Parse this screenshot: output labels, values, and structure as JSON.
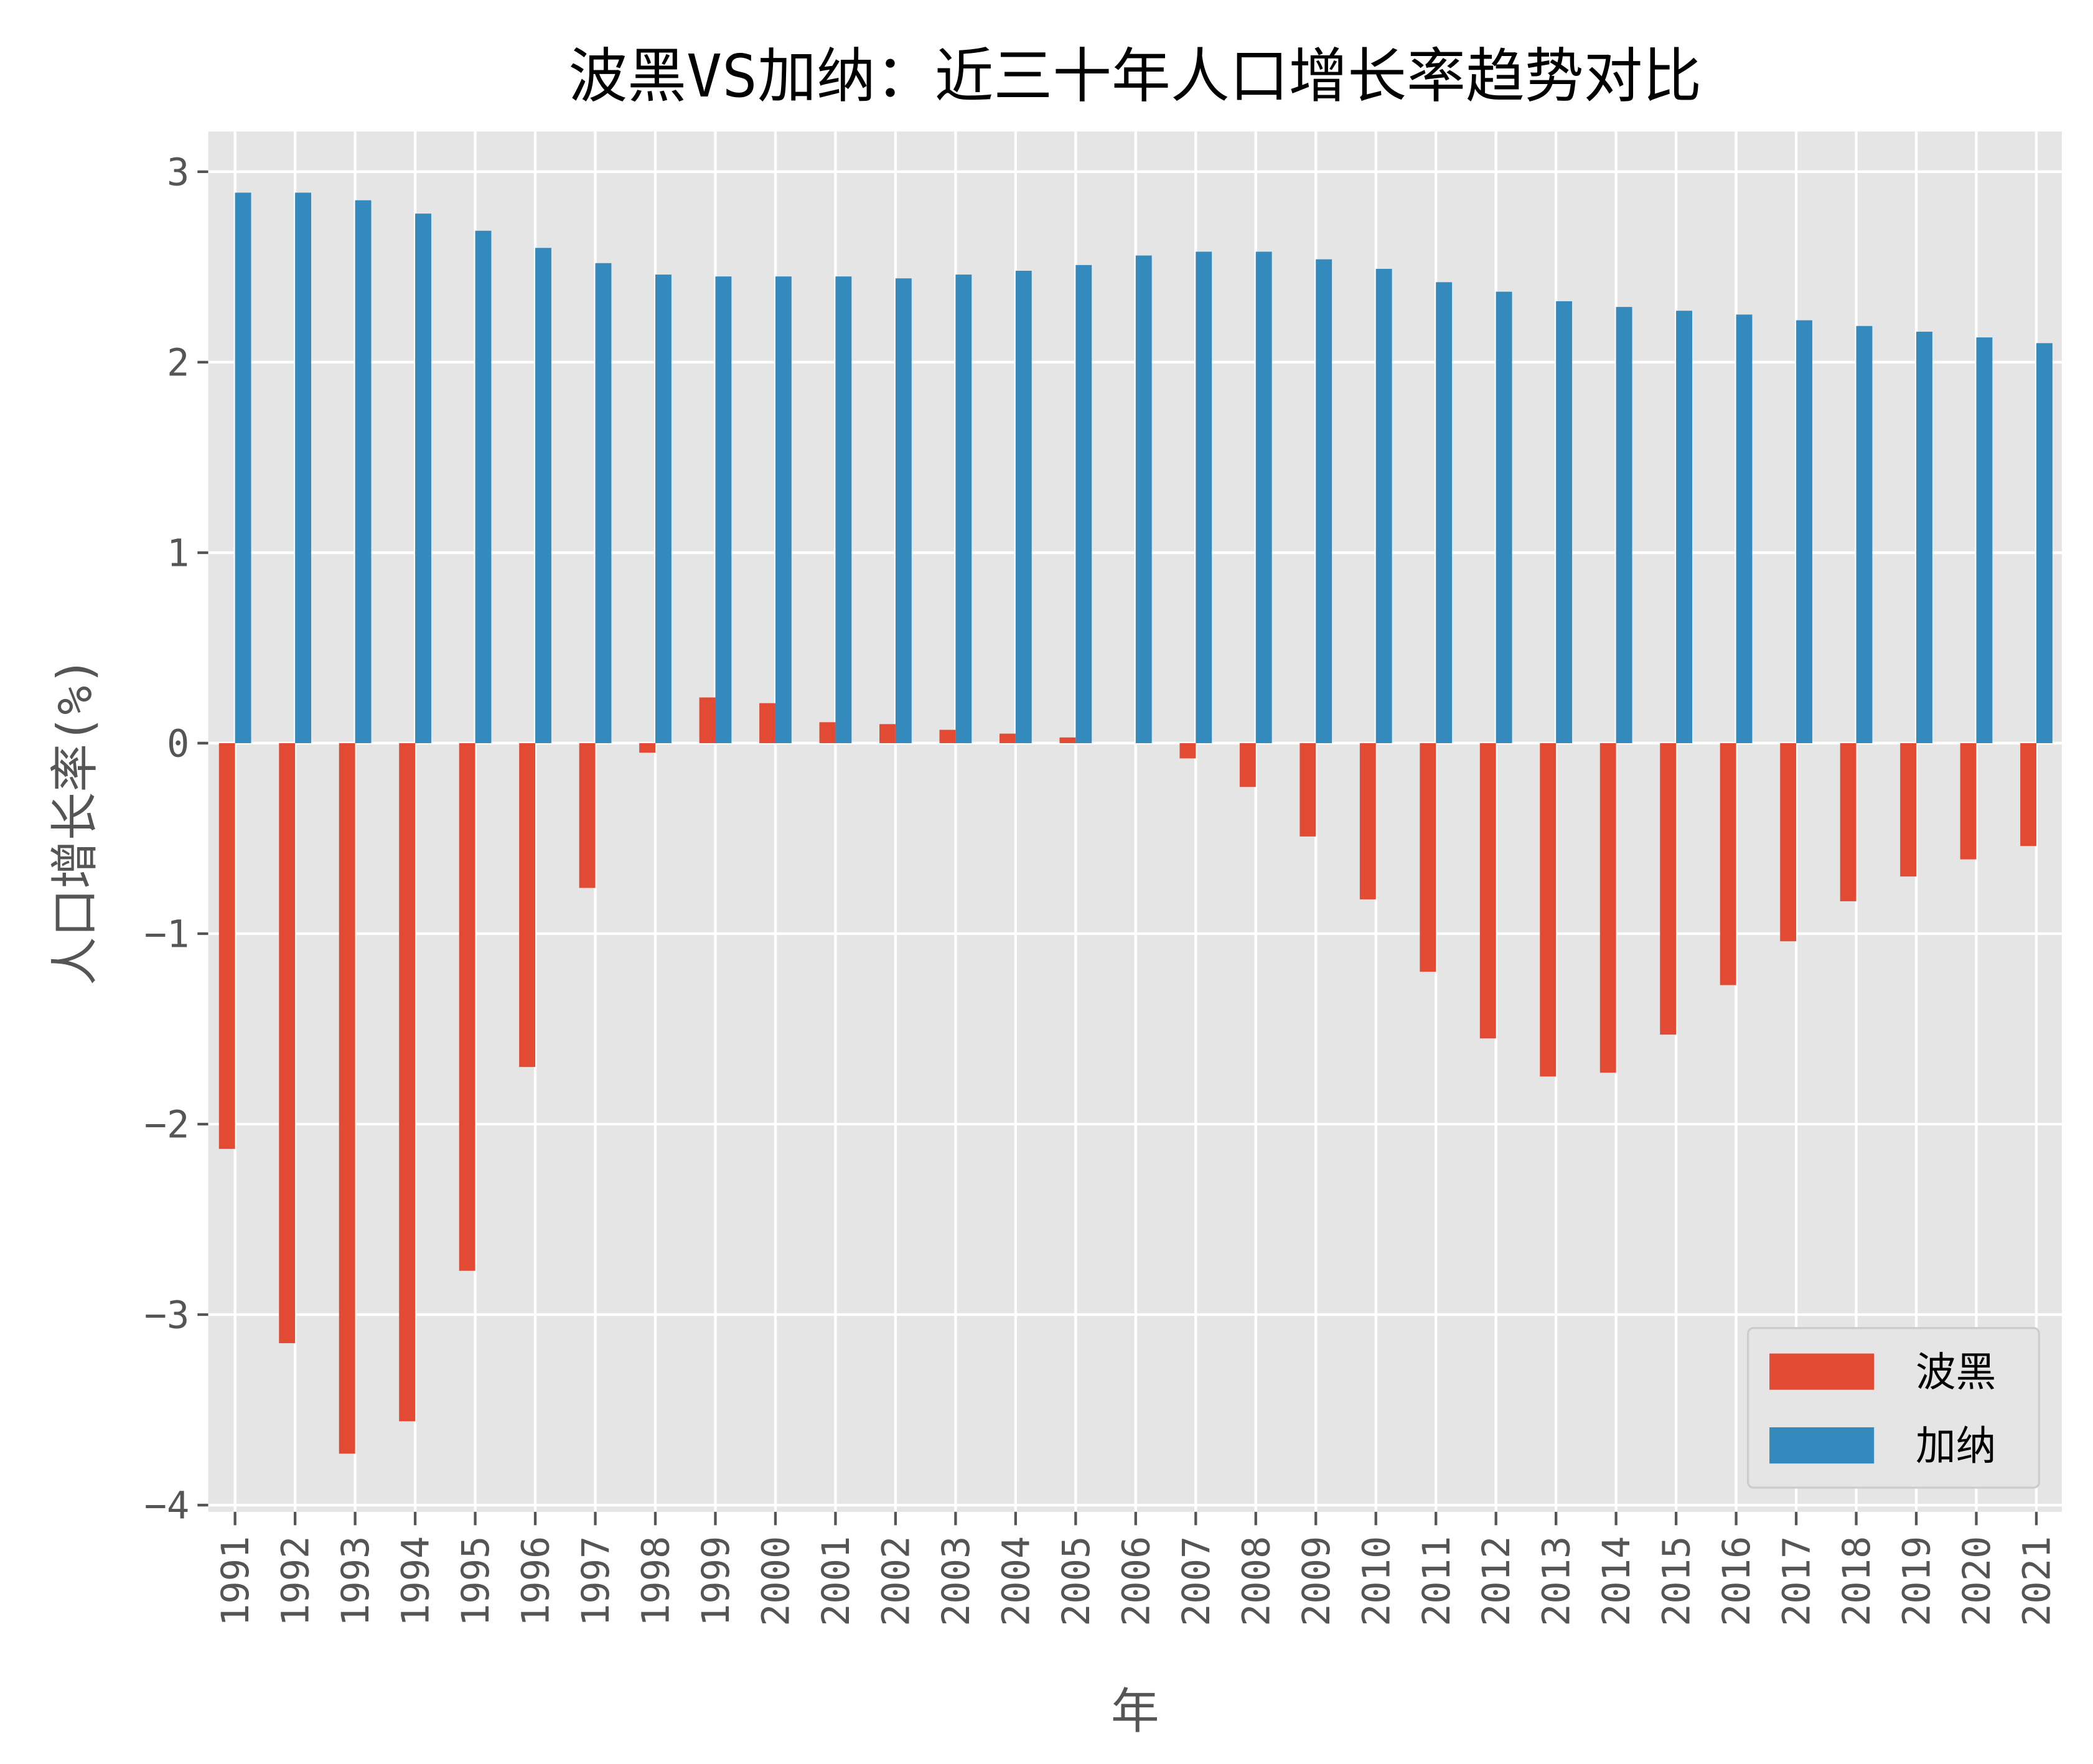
{
  "chart_data": {
    "type": "bar",
    "title": "波黑VS加纳：近三十年人口增长率趋势对比",
    "xlabel": "年",
    "ylabel": "人口增长率(%)",
    "ylim": [
      -4.05,
      3.3
    ],
    "yticks": [
      -4,
      -3,
      -2,
      -1,
      0,
      1,
      2,
      3
    ],
    "ytick_labels": [
      "−4",
      "−3",
      "−2",
      "−1",
      "0",
      "1",
      "2",
      "3"
    ],
    "grid": true,
    "legend_position": "bottom-right",
    "categories": [
      "1991",
      "1992",
      "1993",
      "1994",
      "1995",
      "1996",
      "1997",
      "1998",
      "1999",
      "2000",
      "2001",
      "2002",
      "2003",
      "2004",
      "2005",
      "2006",
      "2007",
      "2008",
      "2009",
      "2010",
      "2011",
      "2012",
      "2013",
      "2014",
      "2015",
      "2016",
      "2017",
      "2018",
      "2019",
      "2020",
      "2021"
    ],
    "series": [
      {
        "name": "波黑",
        "color": "#E24A33",
        "values": [
          -2.13,
          -3.15,
          -3.73,
          -3.56,
          -2.77,
          -1.7,
          -0.76,
          -0.05,
          0.24,
          0.21,
          0.11,
          0.1,
          0.07,
          0.05,
          0.03,
          0.0,
          -0.08,
          -0.23,
          -0.49,
          -0.82,
          -1.2,
          -1.55,
          -1.75,
          -1.73,
          -1.53,
          -1.27,
          -1.04,
          -0.83,
          -0.7,
          -0.61,
          -0.54
        ]
      },
      {
        "name": "加纳",
        "color": "#348ABD",
        "values": [
          2.89,
          2.89,
          2.85,
          2.78,
          2.69,
          2.6,
          2.52,
          2.46,
          2.45,
          2.45,
          2.45,
          2.44,
          2.46,
          2.48,
          2.51,
          2.56,
          2.58,
          2.58,
          2.54,
          2.49,
          2.42,
          2.37,
          2.32,
          2.29,
          2.27,
          2.25,
          2.22,
          2.19,
          2.16,
          2.13,
          2.1
        ]
      }
    ]
  }
}
